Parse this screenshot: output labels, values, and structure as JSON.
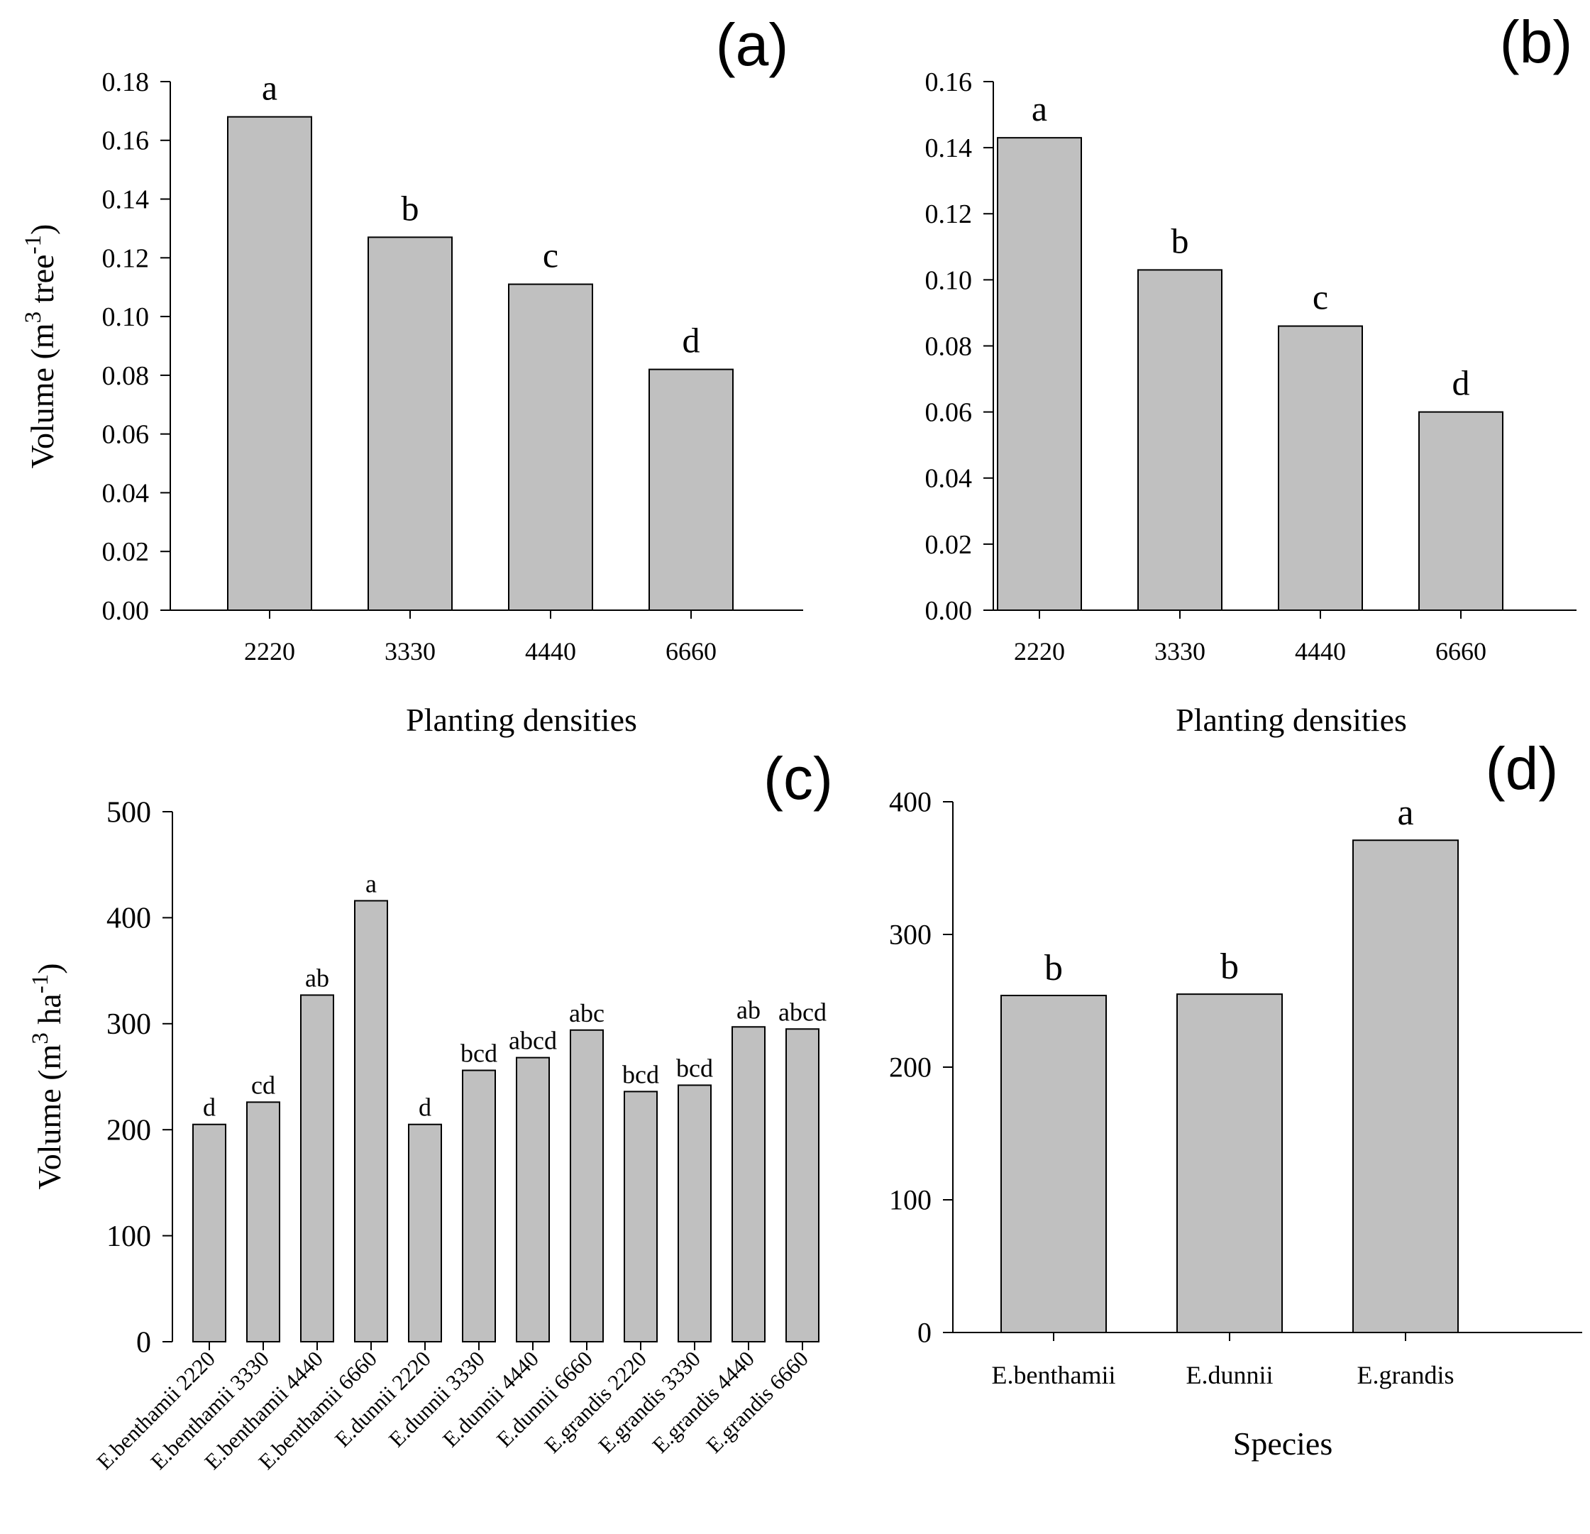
{
  "colors": {
    "bar_fill": "#c0c0c0",
    "bar_stroke": "#000000",
    "axis": "#000000",
    "text": "#000000"
  },
  "chart_data": [
    {
      "id": "a",
      "panel_label": "(a)",
      "type": "bar",
      "title": "",
      "xlabel": "Planting densities",
      "ylabel_parts": [
        "Volume (m",
        "3",
        " tree",
        "-1",
        ")"
      ],
      "categories": [
        "2220",
        "3330",
        "4440",
        "6660"
      ],
      "values": [
        0.168,
        0.127,
        0.111,
        0.082
      ],
      "letters": [
        "a",
        "b",
        "c",
        "d"
      ],
      "ylim": [
        0,
        0.18
      ],
      "yticks": [
        "0.00",
        "0.02",
        "0.04",
        "0.06",
        "0.08",
        "0.10",
        "0.12",
        "0.14",
        "0.16",
        "0.18"
      ],
      "grid": false
    },
    {
      "id": "b",
      "panel_label": "(b)",
      "type": "bar",
      "title": "",
      "xlabel": "Planting densities",
      "ylabel_parts": [],
      "categories": [
        "2220",
        "3330",
        "4440",
        "6660"
      ],
      "values": [
        0.143,
        0.103,
        0.086,
        0.06
      ],
      "letters": [
        "a",
        "b",
        "c",
        "d"
      ],
      "ylim": [
        0,
        0.16
      ],
      "yticks": [
        "0.00",
        "0.02",
        "0.04",
        "0.06",
        "0.08",
        "0.10",
        "0.12",
        "0.14",
        "0.16"
      ],
      "grid": false
    },
    {
      "id": "c",
      "panel_label": "(c)",
      "type": "bar",
      "title": "",
      "xlabel": "",
      "ylabel_parts": [
        "Volume (m",
        "3",
        " ha",
        "-1",
        ")"
      ],
      "categories": [
        "E.benthamii 2220",
        "E.benthamii 3330",
        "E.benthamii 4440",
        "E.benthamii 6660",
        "E.dunnii 2220",
        "E.dunnii 3330",
        "E.dunnii 4440",
        "E.dunnii 6660",
        "E.grandis 2220",
        "E.grandis 3330",
        "E.grandis 4440",
        "E.grandis 6660"
      ],
      "values": [
        205,
        226,
        327,
        416,
        205,
        256,
        268,
        294,
        236,
        242,
        297,
        295
      ],
      "letters": [
        "d",
        "cd",
        "ab",
        "a",
        "d",
        "bcd",
        "abcd",
        "abc",
        "bcd",
        "bcd",
        "ab",
        "abcd"
      ],
      "ylim": [
        0,
        500
      ],
      "yticks": [
        "0",
        "100",
        "200",
        "300",
        "400",
        "500"
      ],
      "grid": false
    },
    {
      "id": "d",
      "panel_label": "(d)",
      "type": "bar",
      "title": "",
      "xlabel": "Species",
      "ylabel_parts": [],
      "categories": [
        "E.benthamii",
        "E.dunnii",
        "E.grandis"
      ],
      "values": [
        254,
        255,
        371
      ],
      "letters": [
        "b",
        "b",
        "a"
      ],
      "ylim": [
        0,
        400
      ],
      "yticks": [
        "0",
        "100",
        "200",
        "300",
        "400"
      ],
      "grid": false
    }
  ]
}
